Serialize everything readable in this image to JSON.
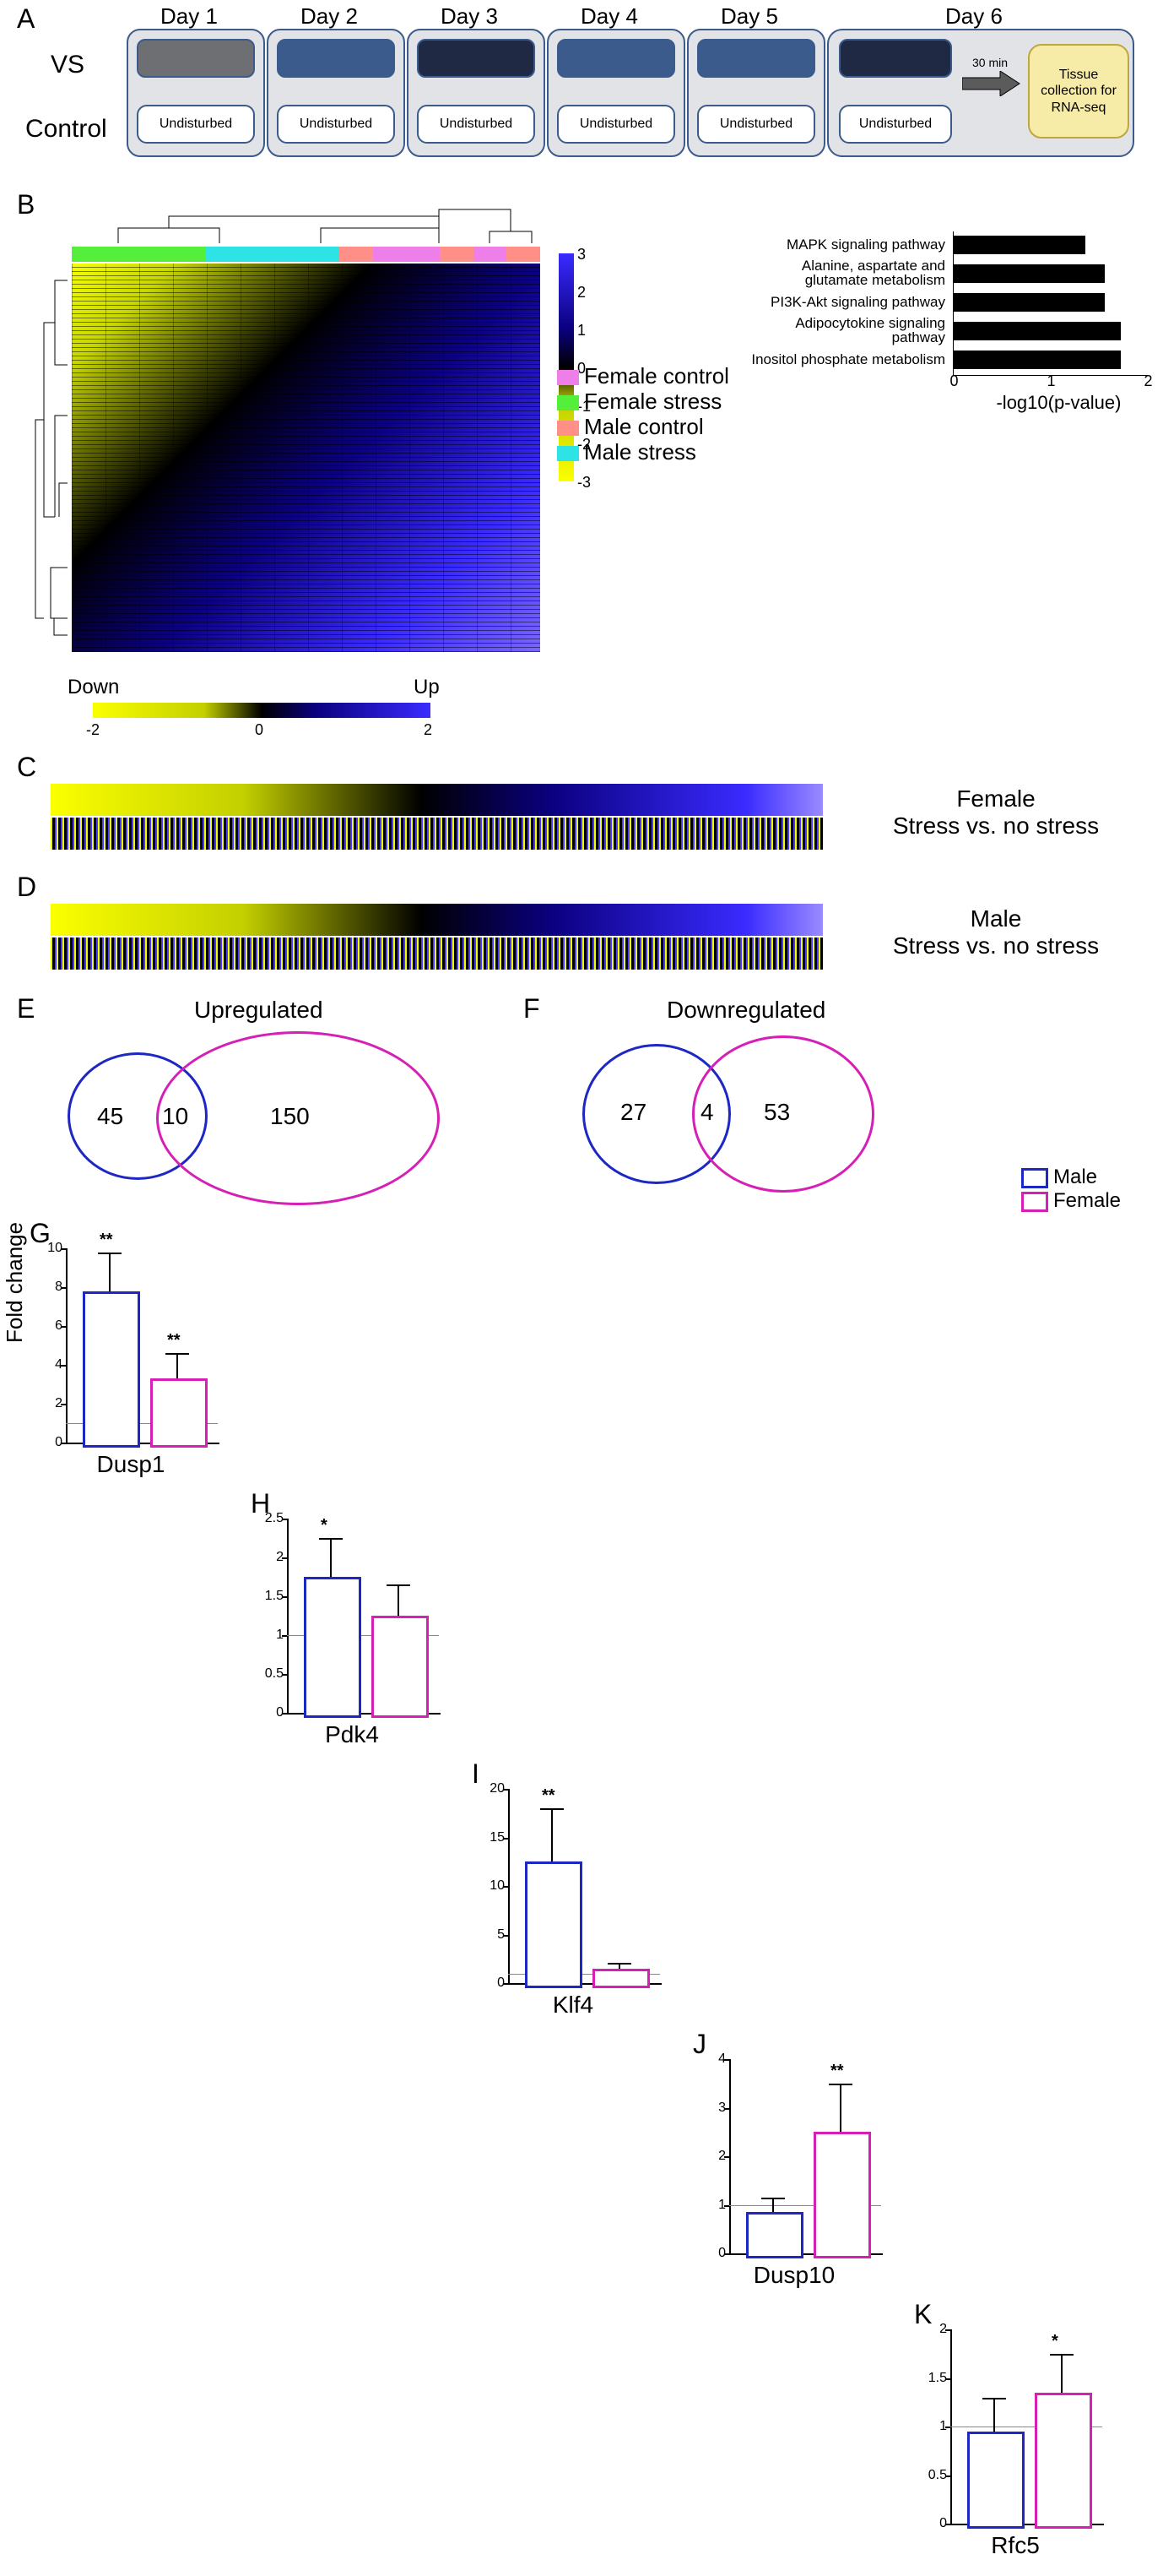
{
  "panelA": {
    "days": [
      "Day 1",
      "Day 2",
      "Day 3",
      "Day 4",
      "Day 5",
      "Day 6"
    ],
    "rowLabels": {
      "vs": "VS",
      "control": "Control"
    },
    "undisturbed": "Undisturbed",
    "vsColors": [
      "#6e6f73",
      "#3b5b8c",
      "#202944",
      "#3b5b8c",
      "#3b5b8c",
      "#202944"
    ],
    "arrowNote": "30 min",
    "rnaBox": "Tissue\ncollection for\nRNA-seq"
  },
  "panelB": {
    "heatmap": {
      "type": "heatmap",
      "topGroupColors": [
        "#55ef3b",
        "#55ef3b",
        "#55ef3b",
        "#55ef3b",
        "#2de3e6",
        "#2de3e6",
        "#2de3e6",
        "#2de3e6",
        "#ff8f87",
        "#ef7fe8",
        "#ef7fe8",
        "#ff8f87",
        "#ef7fe8",
        "#ff8f87"
      ],
      "scale": {
        "min": -3,
        "max": 3,
        "ticks": [
          -3,
          -2,
          -1,
          0,
          1,
          2,
          3
        ]
      },
      "colorbar_colors": [
        "#3a2bff",
        "#0b0080",
        "#000000",
        "#c3cf00",
        "#fbff00"
      ]
    },
    "groupLegend": [
      {
        "label": "Female control",
        "color": "#ef7fe8"
      },
      {
        "label": "Female stress",
        "color": "#55ef3b"
      },
      {
        "label": "Male control",
        "color": "#ff8f87"
      },
      {
        "label": "Male stress",
        "color": "#2de3e6"
      }
    ],
    "pathways": {
      "type": "bar",
      "xlabel": "-log10(p-value)",
      "xlim": [
        0,
        2
      ],
      "xticks": [
        0,
        1,
        2
      ],
      "bar_color": "#000000",
      "rows": [
        {
          "label": "MAPK signaling pathway",
          "value": 1.35
        },
        {
          "label": "Alanine, aspartate and\nglutamate metabolism",
          "value": 1.55
        },
        {
          "label": "PI3K-Akt signaling pathway",
          "value": 1.55
        },
        {
          "label": "Adipocytokine signaling pathway",
          "value": 1.72
        },
        {
          "label": "Inositol phosphate metabolism",
          "value": 1.72
        }
      ]
    },
    "hScale": {
      "label_down": "Down",
      "label_up": "Up",
      "min": -2,
      "max": 2,
      "ticks": [
        -2,
        0,
        2
      ],
      "colors": [
        "#fbff00",
        "#000000",
        "#3a2bff"
      ]
    }
  },
  "panelC": {
    "label": "Female\nStress vs. no stress"
  },
  "panelD": {
    "label": "Male\nStress vs. no stress"
  },
  "panelE": {
    "title": "Upregulated",
    "values": {
      "male_only": 45,
      "overlap": 10,
      "female_only": 150
    },
    "colors": {
      "male": "#1d28c4",
      "female": "#d61fb5"
    }
  },
  "panelF": {
    "title": "Downregulated",
    "values": {
      "male_only": 27,
      "overlap": 4,
      "female_only": 53
    },
    "colors": {
      "male": "#1d28c4",
      "female": "#d61fb5"
    }
  },
  "vennLegend": {
    "male": "Male",
    "female": "Female",
    "male_color": "#1d28c4",
    "female_color": "#d61fb5"
  },
  "barCharts": {
    "ylabel": "Fold change",
    "colors": {
      "male": "#1d28c4",
      "female": "#d61fb5"
    },
    "one_line_color": "#888888",
    "charts": [
      {
        "id": "G",
        "gene": "Dusp1",
        "ymax": 10,
        "yticks": [
          0,
          2,
          4,
          6,
          8,
          10
        ],
        "male": {
          "mean": 7.8,
          "err": 2.0,
          "sig": "**"
        },
        "female": {
          "mean": 3.3,
          "err": 1.3,
          "sig": "**"
        }
      },
      {
        "id": "H",
        "gene": "Pdk4",
        "ymax": 2.5,
        "yticks": [
          0,
          0.5,
          1.0,
          1.5,
          2.0,
          2.5
        ],
        "male": {
          "mean": 1.75,
          "err": 0.5,
          "sig": "*"
        },
        "female": {
          "mean": 1.25,
          "err": 0.4,
          "sig": ""
        }
      },
      {
        "id": "I",
        "gene": "Klf4",
        "ymax": 20,
        "yticks": [
          0,
          5,
          10,
          15,
          20
        ],
        "male": {
          "mean": 12.5,
          "err": 5.5,
          "sig": "**"
        },
        "female": {
          "mean": 1.5,
          "err": 0.6,
          "sig": ""
        }
      },
      {
        "id": "J",
        "gene": "Dusp10",
        "ymax": 4,
        "yticks": [
          0,
          1,
          2,
          3,
          4
        ],
        "male": {
          "mean": 0.85,
          "err": 0.3,
          "sig": ""
        },
        "female": {
          "mean": 2.5,
          "err": 1.0,
          "sig": "**"
        }
      },
      {
        "id": "K",
        "gene": "Rfc5",
        "ymax": 2.0,
        "yticks": [
          0,
          0.5,
          1.0,
          1.5,
          2.0
        ],
        "male": {
          "mean": 0.95,
          "err": 0.35,
          "sig": ""
        },
        "female": {
          "mean": 1.35,
          "err": 0.4,
          "sig": "*"
        }
      }
    ]
  }
}
